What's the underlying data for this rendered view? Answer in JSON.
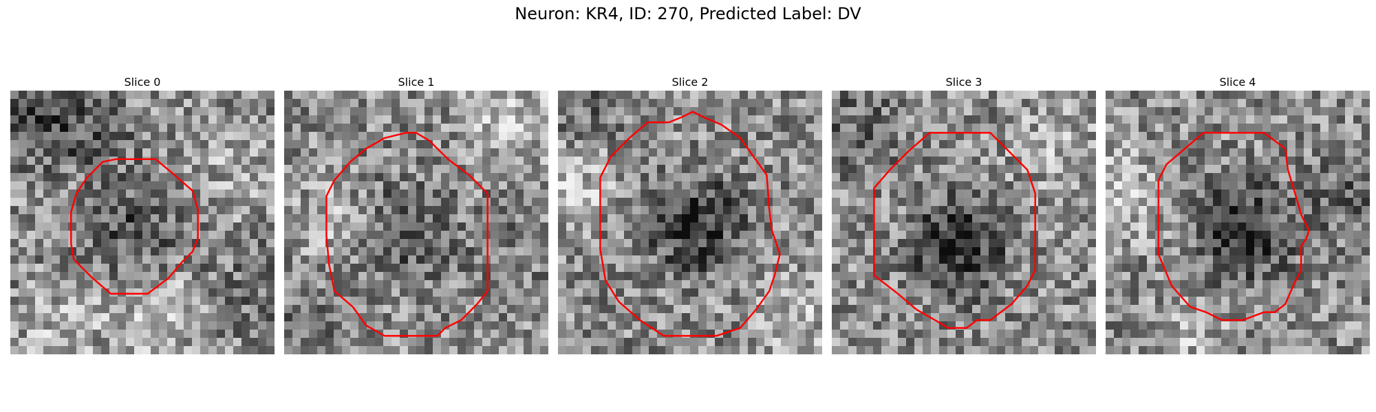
{
  "figure": {
    "title": "Neuron: KR4, ID: 270, Predicted Label: DV"
  },
  "panels": [
    {
      "title": "Slice 0",
      "outline_color": "#ff0000",
      "outline": [
        [
          0.23,
          0.46
        ],
        [
          0.25,
          0.39
        ],
        [
          0.29,
          0.33
        ],
        [
          0.35,
          0.27
        ],
        [
          0.4,
          0.26
        ],
        [
          0.55,
          0.26
        ],
        [
          0.61,
          0.31
        ],
        [
          0.69,
          0.38
        ],
        [
          0.71,
          0.45
        ],
        [
          0.71,
          0.56
        ],
        [
          0.69,
          0.61
        ],
        [
          0.65,
          0.65
        ],
        [
          0.6,
          0.71
        ],
        [
          0.56,
          0.74
        ],
        [
          0.52,
          0.77
        ],
        [
          0.38,
          0.77
        ],
        [
          0.31,
          0.71
        ],
        [
          0.24,
          0.64
        ],
        [
          0.23,
          0.58
        ]
      ],
      "bright_bias": [
        [
          0.1,
          0.1,
          -0.6
        ],
        [
          0.3,
          0.15,
          -0.5
        ],
        [
          0.85,
          0.3,
          0.3
        ],
        [
          0.9,
          0.75,
          -0.3
        ],
        [
          0.2,
          0.9,
          0.4
        ],
        [
          0.55,
          0.85,
          0.6
        ]
      ]
    },
    {
      "title": "Slice 1",
      "outline_color": "#ff0000",
      "outline": [
        [
          0.16,
          0.4
        ],
        [
          0.19,
          0.34
        ],
        [
          0.25,
          0.27
        ],
        [
          0.31,
          0.22
        ],
        [
          0.38,
          0.18
        ],
        [
          0.46,
          0.16
        ],
        [
          0.5,
          0.16
        ],
        [
          0.55,
          0.19
        ],
        [
          0.62,
          0.26
        ],
        [
          0.7,
          0.32
        ],
        [
          0.77,
          0.39
        ],
        [
          0.77,
          0.62
        ],
        [
          0.77,
          0.76
        ],
        [
          0.73,
          0.81
        ],
        [
          0.67,
          0.87
        ],
        [
          0.61,
          0.9
        ],
        [
          0.58,
          0.93
        ],
        [
          0.38,
          0.93
        ],
        [
          0.31,
          0.89
        ],
        [
          0.26,
          0.82
        ],
        [
          0.19,
          0.76
        ],
        [
          0.17,
          0.66
        ],
        [
          0.16,
          0.55
        ]
      ],
      "bright_bias": [
        [
          0.85,
          0.1,
          0.6
        ],
        [
          0.2,
          0.5,
          0.4
        ],
        [
          0.85,
          0.6,
          -0.2
        ],
        [
          0.1,
          0.85,
          -0.3
        ]
      ]
    },
    {
      "title": "Slice 2",
      "outline_color": "#ff0000",
      "outline": [
        [
          0.16,
          0.33
        ],
        [
          0.2,
          0.25
        ],
        [
          0.27,
          0.18
        ],
        [
          0.34,
          0.12
        ],
        [
          0.42,
          0.12
        ],
        [
          0.47,
          0.1
        ],
        [
          0.51,
          0.08
        ],
        [
          0.55,
          0.1
        ],
        [
          0.62,
          0.13
        ],
        [
          0.69,
          0.18
        ],
        [
          0.74,
          0.25
        ],
        [
          0.79,
          0.32
        ],
        [
          0.8,
          0.45
        ],
        [
          0.81,
          0.53
        ],
        [
          0.84,
          0.62
        ],
        [
          0.82,
          0.7
        ],
        [
          0.8,
          0.76
        ],
        [
          0.75,
          0.83
        ],
        [
          0.69,
          0.9
        ],
        [
          0.6,
          0.93
        ],
        [
          0.4,
          0.93
        ],
        [
          0.31,
          0.87
        ],
        [
          0.23,
          0.8
        ],
        [
          0.18,
          0.72
        ],
        [
          0.16,
          0.6
        ]
      ],
      "bright_bias": [
        [
          0.05,
          0.35,
          0.5
        ],
        [
          0.9,
          0.85,
          0.5
        ],
        [
          0.1,
          0.05,
          -0.4
        ],
        [
          0.5,
          0.55,
          -0.5
        ]
      ]
    },
    {
      "title": "Slice 3",
      "outline_color": "#ff0000",
      "outline": [
        [
          0.16,
          0.37
        ],
        [
          0.22,
          0.3
        ],
        [
          0.29,
          0.23
        ],
        [
          0.37,
          0.16
        ],
        [
          0.6,
          0.16
        ],
        [
          0.67,
          0.23
        ],
        [
          0.74,
          0.3
        ],
        [
          0.77,
          0.39
        ],
        [
          0.77,
          0.68
        ],
        [
          0.74,
          0.74
        ],
        [
          0.68,
          0.81
        ],
        [
          0.6,
          0.87
        ],
        [
          0.55,
          0.87
        ],
        [
          0.51,
          0.9
        ],
        [
          0.44,
          0.9
        ],
        [
          0.39,
          0.87
        ],
        [
          0.32,
          0.83
        ],
        [
          0.25,
          0.77
        ],
        [
          0.16,
          0.7
        ],
        [
          0.16,
          0.55
        ]
      ],
      "bright_bias": [
        [
          0.1,
          0.15,
          -0.4
        ],
        [
          0.85,
          0.2,
          0.4
        ],
        [
          0.5,
          0.6,
          -0.5
        ]
      ]
    },
    {
      "title": "Slice 4",
      "outline_color": "#ff0000",
      "outline": [
        [
          0.2,
          0.34
        ],
        [
          0.23,
          0.28
        ],
        [
          0.3,
          0.22
        ],
        [
          0.37,
          0.16
        ],
        [
          0.6,
          0.16
        ],
        [
          0.64,
          0.19
        ],
        [
          0.68,
          0.22
        ],
        [
          0.69,
          0.3
        ],
        [
          0.72,
          0.4
        ],
        [
          0.74,
          0.47
        ],
        [
          0.76,
          0.51
        ],
        [
          0.77,
          0.53
        ],
        [
          0.76,
          0.56
        ],
        [
          0.74,
          0.59
        ],
        [
          0.74,
          0.68
        ],
        [
          0.71,
          0.74
        ],
        [
          0.68,
          0.81
        ],
        [
          0.64,
          0.84
        ],
        [
          0.6,
          0.84
        ],
        [
          0.52,
          0.87
        ],
        [
          0.48,
          0.87
        ],
        [
          0.44,
          0.87
        ],
        [
          0.38,
          0.84
        ],
        [
          0.32,
          0.82
        ],
        [
          0.25,
          0.74
        ],
        [
          0.2,
          0.62
        ]
      ],
      "bright_bias": [
        [
          0.05,
          0.4,
          0.6
        ],
        [
          0.9,
          0.4,
          -0.4
        ],
        [
          0.5,
          0.5,
          -0.5
        ],
        [
          0.3,
          0.95,
          0.4
        ]
      ]
    }
  ]
}
